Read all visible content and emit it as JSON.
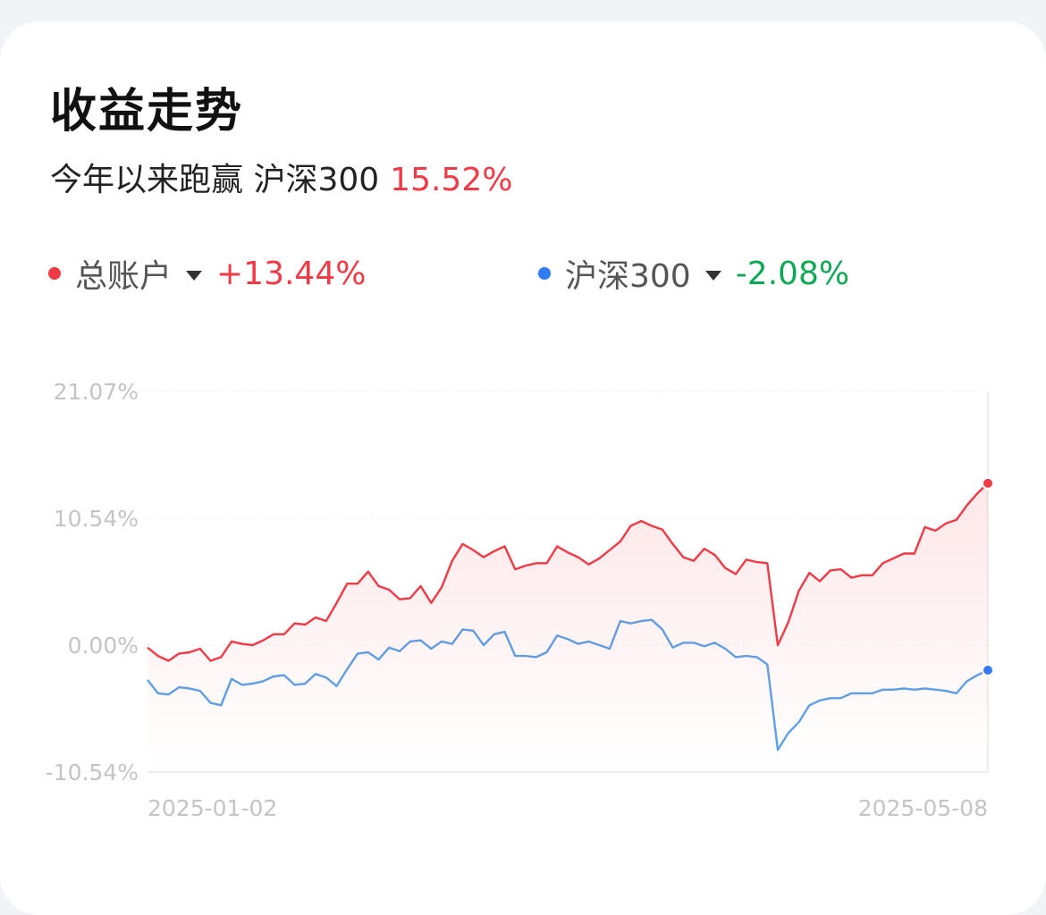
{
  "title": "收益走势",
  "subtitle": {
    "text": "今年以来跑赢 沪深300",
    "value": "15.52%"
  },
  "legend": [
    {
      "label": "总账户",
      "value": "+13.44%",
      "dot_color": "#f03a45",
      "value_color": "#f03a45"
    },
    {
      "label": "沪深300",
      "value": "-2.08%",
      "dot_color": "#2f7cf6",
      "value_color": "#0fa956"
    }
  ],
  "chart_data": {
    "type": "line",
    "y_ticks": [
      "21.07%",
      "10.54%",
      "0.00%",
      "-10.54%"
    ],
    "x_labels": [
      "2025-01-02",
      "2025-05-08"
    ],
    "ylim": [
      -10.54,
      21.07
    ],
    "x_range": [
      "2025-01-02",
      "2025-05-08"
    ],
    "series": [
      {
        "name": "总账户",
        "color": "#f03a45",
        "area": true,
        "values": [
          -0.2,
          -0.9,
          -1.3,
          -0.7,
          -0.6,
          -0.3,
          -1.3,
          -1.0,
          0.3,
          0.1,
          0.0,
          0.4,
          0.9,
          0.9,
          1.8,
          1.7,
          2.3,
          2.0,
          3.5,
          5.1,
          5.1,
          6.1,
          4.9,
          4.6,
          3.8,
          3.9,
          4.9,
          3.5,
          4.8,
          7.0,
          8.4,
          7.9,
          7.3,
          7.8,
          8.2,
          6.3,
          6.6,
          6.8,
          6.8,
          8.2,
          7.7,
          7.3,
          6.7,
          7.2,
          7.9,
          8.6,
          9.9,
          10.3,
          9.9,
          9.6,
          8.4,
          7.3,
          7.0,
          8.0,
          7.5,
          6.4,
          5.9,
          7.1,
          6.9,
          6.8,
          0.0,
          1.9,
          4.5,
          6.0,
          5.3,
          6.2,
          6.3,
          5.6,
          5.8,
          5.8,
          6.8,
          7.2,
          7.6,
          7.6,
          9.8,
          9.5,
          10.1,
          10.4,
          11.6,
          12.6,
          13.44
        ]
      },
      {
        "name": "沪深300",
        "color": "#5aa2ea",
        "area": false,
        "values": [
          -2.9,
          -4.0,
          -4.1,
          -3.5,
          -3.6,
          -3.8,
          -4.8,
          -5.0,
          -2.8,
          -3.3,
          -3.2,
          -3.0,
          -2.6,
          -2.5,
          -3.3,
          -3.2,
          -2.4,
          -2.7,
          -3.4,
          -2.0,
          -0.7,
          -0.6,
          -1.2,
          -0.2,
          -0.5,
          0.3,
          0.4,
          -0.3,
          0.3,
          0.1,
          1.3,
          1.2,
          0.0,
          0.9,
          1.1,
          -0.9,
          -0.9,
          -1.0,
          -0.6,
          0.8,
          0.5,
          0.1,
          0.3,
          0.0,
          -0.3,
          2.0,
          1.8,
          2.0,
          2.1,
          1.3,
          -0.2,
          0.2,
          0.2,
          -0.1,
          0.2,
          -0.3,
          -1.0,
          -0.9,
          -1.0,
          -1.6,
          -8.7,
          -7.3,
          -6.4,
          -5.0,
          -4.6,
          -4.4,
          -4.4,
          -4.0,
          -4.0,
          -4.0,
          -3.7,
          -3.7,
          -3.6,
          -3.7,
          -3.6,
          -3.7,
          -3.8,
          -4.0,
          -3.0,
          -2.5,
          -2.08
        ]
      }
    ]
  }
}
